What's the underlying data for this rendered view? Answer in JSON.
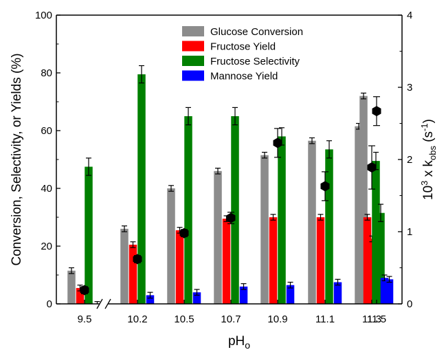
{
  "chart_data": {
    "type": "bar",
    "categories": [
      "9.5",
      "10.2",
      "10.5",
      "10.7",
      "10.9",
      "11.1",
      "11.3",
      "11.5"
    ],
    "xlabel": "pH",
    "xlabel_sub": "o",
    "ylabel": "Conversion, Selectivity, or Yields (%)",
    "ylabel_right": "10",
    "ylabel_right_exp": "3",
    "ylabel_right_mid": " x k",
    "ylabel_right_sub": "obs",
    "ylabel_right_unit": " (s",
    "ylabel_right_unit_exp": "-1",
    "ylabel_right_end": ")",
    "ylim": [
      0,
      100
    ],
    "y2lim": [
      0,
      4
    ],
    "yticks": [
      "0",
      "20",
      "40",
      "60",
      "80",
      "100"
    ],
    "y2ticks": [
      "0",
      "1",
      "2",
      "3",
      "4"
    ],
    "legend_position": "top-center",
    "axis_break_between": [
      "9.5",
      "10.2"
    ],
    "series": [
      {
        "name": "Glucose Conversion",
        "color": "#8c8c8c",
        "values": [
          11.5,
          26,
          40,
          46,
          51.5,
          56.5,
          61.5,
          72
        ],
        "errors": [
          1,
          1,
          1,
          1,
          1,
          1,
          1,
          1
        ]
      },
      {
        "name": "Fructose Yield",
        "color": "#ff0000",
        "values": [
          5.5,
          20.5,
          25.5,
          29.5,
          30,
          30,
          30,
          22.5
        ],
        "errors": [
          1,
          1,
          1,
          1,
          1,
          1,
          1,
          1
        ]
      },
      {
        "name": "Fructose Selectivity",
        "color": "#008000",
        "values": [
          47.5,
          79.5,
          65,
          65,
          58,
          53.5,
          49.5,
          31.5
        ],
        "errors": [
          3,
          3,
          3,
          3,
          3,
          3,
          3,
          3
        ]
      },
      {
        "name": "Mannose Yield",
        "color": "#0000ff",
        "values": [
          0,
          3,
          4,
          6,
          6.5,
          7.5,
          9,
          8.5
        ],
        "errors": [
          0,
          1,
          1,
          1,
          1,
          1,
          1,
          1
        ]
      }
    ],
    "points": {
      "axis": "right",
      "color": "#000000",
      "values": [
        0.19,
        0.62,
        0.98,
        1.19,
        2.23,
        1.63,
        1.89,
        2.67
      ],
      "errors": [
        0.05,
        0.05,
        0.05,
        0.08,
        0.2,
        0.2,
        0.3,
        0.2
      ]
    }
  }
}
